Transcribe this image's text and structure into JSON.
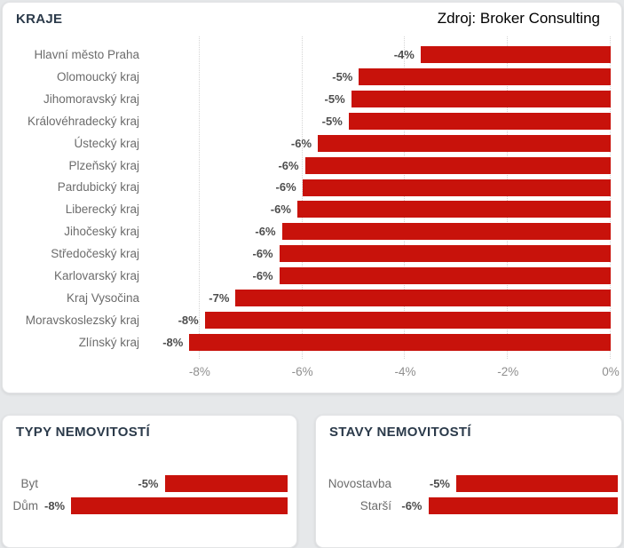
{
  "source_label": "Zdroj: Broker Consulting",
  "colors": {
    "bar": "#c8120b",
    "title_text": "#2b3a4a",
    "category_label": "#6c6c6c",
    "value_label": "#4d4d4d",
    "tick_label": "#8f8f8f",
    "gridline": "#d4d4d4",
    "page_background": "#e6e8ea",
    "card_background": "#ffffff"
  },
  "chart_data": [
    {
      "type": "bar",
      "orientation": "horizontal",
      "title": "KRAJE",
      "categories": [
        "Hlavní město Praha",
        "Olomoucký kraj",
        "Jihomoravský kraj",
        "Královéhradecký kraj",
        "Ústecký kraj",
        "Plzeňský kraj",
        "Pardubický kraj",
        "Liberecký kraj",
        "Jihočeský kraj",
        "Středočeský kraj",
        "Karlovarský kraj",
        "Kraj Vysočina",
        "Moravskoslezský kraj",
        "Zlínský kraj"
      ],
      "values": [
        -3.7,
        -4.9,
        -5.05,
        -5.1,
        -5.7,
        -5.95,
        -6.0,
        -6.1,
        -6.4,
        -6.45,
        -6.45,
        -7.3,
        -7.9,
        -8.2
      ],
      "labels": [
        "-4%",
        "-5%",
        "-5%",
        "-5%",
        "-6%",
        "-6%",
        "-6%",
        "-6%",
        "-6%",
        "-6%",
        "-6%",
        "-7%",
        "-8%",
        "-8%"
      ],
      "xlim": [
        -9,
        0
      ],
      "x_ticks": [
        {
          "value": -8,
          "label": "-8%"
        },
        {
          "value": -6,
          "label": "-6%"
        },
        {
          "value": -4,
          "label": "-4%"
        },
        {
          "value": -2,
          "label": "-2%"
        },
        {
          "value": 0,
          "label": "0%"
        }
      ],
      "grid": true,
      "legend": false
    },
    {
      "type": "bar",
      "orientation": "horizontal",
      "title": "TYPY NEMOVITOSTÍ",
      "categories": [
        "Byt",
        "Dům"
      ],
      "values": [
        -4.6,
        -8.1
      ],
      "labels": [
        "-5%",
        "-8%"
      ],
      "xlim": [
        -9,
        0
      ],
      "grid": false,
      "legend": false
    },
    {
      "type": "bar",
      "orientation": "horizontal",
      "title": "STAVY NEMOVITOSTÍ",
      "categories": [
        "Novostavba",
        "Starší"
      ],
      "values": [
        -5.2,
        -6.1
      ],
      "labels": [
        "-5%",
        "-6%"
      ],
      "xlim": [
        -7,
        0
      ],
      "grid": false,
      "legend": false
    }
  ]
}
